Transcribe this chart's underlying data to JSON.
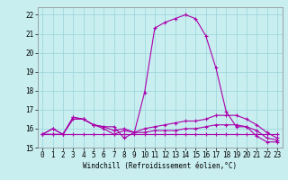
{
  "xlabel": "Windchill (Refroidissement éolien,°C)",
  "bg_color": "#c8eef0",
  "grid_color": "#a0d8dc",
  "line_color": "#aa00aa",
  "xlim": [
    -0.5,
    23.5
  ],
  "ylim": [
    15.0,
    22.4
  ],
  "xticks": [
    0,
    1,
    2,
    3,
    4,
    5,
    6,
    7,
    8,
    9,
    10,
    11,
    12,
    13,
    14,
    15,
    16,
    17,
    18,
    19,
    20,
    21,
    22,
    23
  ],
  "yticks": [
    15,
    16,
    17,
    18,
    19,
    20,
    21,
    22
  ],
  "line1_x": [
    0,
    1,
    2,
    3,
    4,
    5,
    6,
    7,
    8,
    9,
    10,
    11,
    12,
    13,
    14,
    15,
    16,
    17,
    18,
    19,
    20,
    21,
    22,
    23
  ],
  "line1_y": [
    15.7,
    15.7,
    15.7,
    15.7,
    15.7,
    15.7,
    15.7,
    15.7,
    15.7,
    15.7,
    15.7,
    15.7,
    15.7,
    15.7,
    15.7,
    15.7,
    15.7,
    15.7,
    15.7,
    15.7,
    15.7,
    15.7,
    15.7,
    15.7
  ],
  "line2_x": [
    0,
    1,
    2,
    3,
    4,
    5,
    6,
    7,
    8,
    9,
    10,
    11,
    12,
    13,
    14,
    15,
    16,
    17,
    18,
    19,
    20,
    21,
    22,
    23
  ],
  "line2_y": [
    15.7,
    16.0,
    15.7,
    16.6,
    16.5,
    16.2,
    16.1,
    15.9,
    16.0,
    15.8,
    15.8,
    15.9,
    15.9,
    15.9,
    16.0,
    16.0,
    16.1,
    16.2,
    16.2,
    16.2,
    16.1,
    15.9,
    15.5,
    15.4
  ],
  "line3_x": [
    0,
    1,
    2,
    3,
    4,
    5,
    6,
    7,
    8,
    9,
    10,
    11,
    12,
    13,
    14,
    15,
    16,
    17,
    18,
    19,
    20,
    21,
    22,
    23
  ],
  "line3_y": [
    15.7,
    16.0,
    15.7,
    16.6,
    16.5,
    16.2,
    16.0,
    15.7,
    15.9,
    15.8,
    16.0,
    16.1,
    16.2,
    16.3,
    16.4,
    16.4,
    16.5,
    16.7,
    16.7,
    16.7,
    16.5,
    16.2,
    15.8,
    15.5
  ],
  "line4_x": [
    0,
    1,
    2,
    3,
    4,
    5,
    6,
    7,
    8,
    9,
    10,
    11,
    12,
    13,
    14,
    15,
    16,
    17,
    18,
    19,
    20,
    21,
    22,
    23
  ],
  "line4_y": [
    15.7,
    15.7,
    15.7,
    16.5,
    16.5,
    16.2,
    16.1,
    16.1,
    15.5,
    15.8,
    17.9,
    21.3,
    21.6,
    21.8,
    22.0,
    21.8,
    20.9,
    19.2,
    16.9,
    16.1,
    16.1,
    15.6,
    15.3,
    15.3
  ],
  "tick_fontsize": 5.5,
  "xlabel_fontsize": 5.5,
  "linewidth": 0.8,
  "markersize": 2.5
}
